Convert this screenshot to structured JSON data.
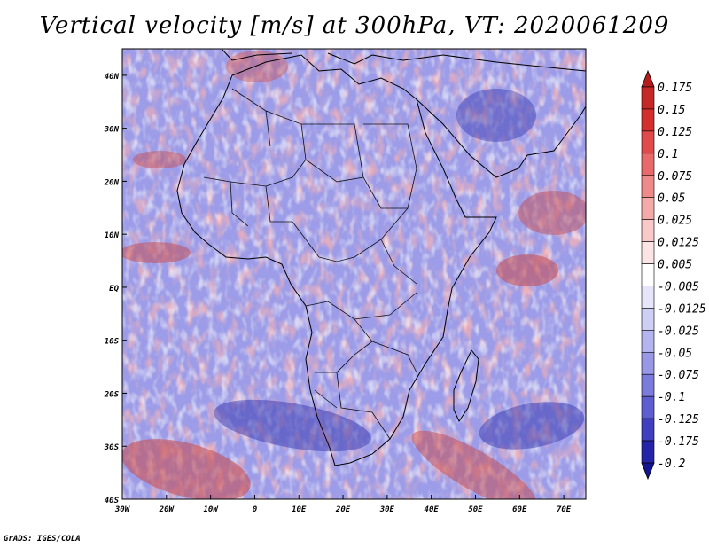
{
  "title": "Vertical velocity [m/s] at 300hPa, VT: 2020061209",
  "footer": "GrADS: IGES/COLA",
  "map": {
    "lon_range": [
      -30,
      75
    ],
    "lat_range": [
      -40,
      45
    ],
    "lon_ticks": [
      "30W",
      "20W",
      "10W",
      "0",
      "10E",
      "20E",
      "30E",
      "40E",
      "50E",
      "60E",
      "70E"
    ],
    "lat_ticks": [
      "40N",
      "30N",
      "20N",
      "10N",
      "EQ",
      "10S",
      "20S",
      "30S",
      "40S"
    ]
  },
  "colorbar": {
    "labels": [
      "0.175",
      "0.15",
      "0.125",
      "0.1",
      "0.075",
      "0.05",
      "0.025",
      "0.0125",
      "0.005",
      "-0.005",
      "-0.0125",
      "-0.025",
      "-0.05",
      "-0.075",
      "-0.1",
      "-0.125",
      "-0.175",
      "-0.2"
    ],
    "colors": [
      "#b71c1c",
      "#c62828",
      "#d32f2f",
      "#e04a4a",
      "#e86a6a",
      "#ef8a8a",
      "#f5aaaa",
      "#f9c8c8",
      "#fde4e4",
      "#ffffff",
      "#e6e6fa",
      "#cfcff4",
      "#b4b4ee",
      "#9898e6",
      "#7c7cdc",
      "#5e5ed0",
      "#3f3fc0",
      "#2424a8",
      "#141490"
    ]
  }
}
